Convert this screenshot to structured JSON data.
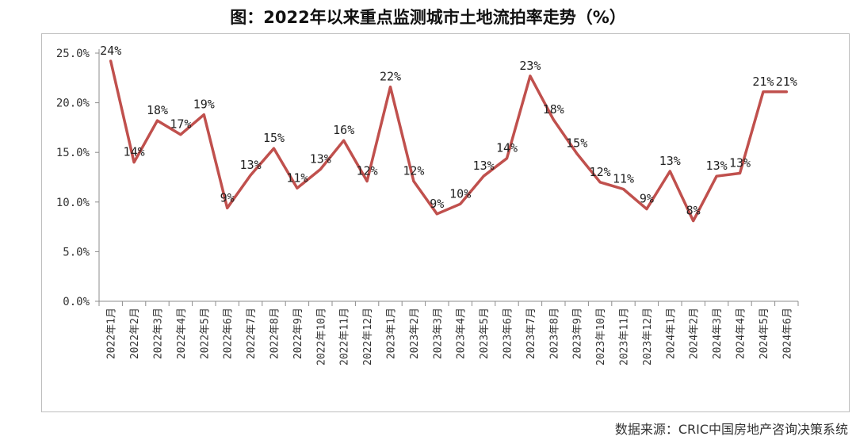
{
  "title": "图：2022年以来重点监测城市土地流拍率走势（%）",
  "source": "数据来源：CRIC中国房地产咨询决策系统",
  "chart_data": {
    "type": "line",
    "title": "图：2022年以来重点监测城市土地流拍率走势（%）",
    "xlabel": "",
    "ylabel": "",
    "ylim": [
      0,
      25
    ],
    "yticks": [
      "0.0%",
      "5.0%",
      "10.0%",
      "15.0%",
      "20.0%",
      "25.0%"
    ],
    "ytick_values": [
      0,
      5,
      10,
      15,
      20,
      25
    ],
    "grid": false,
    "color": "#c0504d",
    "categories": [
      "2022年1月",
      "2022年2月",
      "2022年3月",
      "2022年4月",
      "2022年5月",
      "2022年6月",
      "2022年7月",
      "2022年8月",
      "2022年9月",
      "2022年10月",
      "2022年11月",
      "2022年12月",
      "2023年1月",
      "2023年2月",
      "2023年3月",
      "2023年4月",
      "2023年5月",
      "2023年6月",
      "2023年7月",
      "2023年8月",
      "2023年9月",
      "2023年10月",
      "2023年11月",
      "2023年12月",
      "2024年1月",
      "2024年2月",
      "2024年3月",
      "2024年4月",
      "2024年5月",
      "2024年6月"
    ],
    "series": [
      {
        "values": [
          24.2,
          14.0,
          18.2,
          16.8,
          18.8,
          9.4,
          12.7,
          15.4,
          11.4,
          13.3,
          16.2,
          12.1,
          21.6,
          12.1,
          8.8,
          9.8,
          12.6,
          14.4,
          22.7,
          18.3,
          14.9,
          12.0,
          11.3,
          9.3,
          13.1,
          8.1,
          12.6,
          12.9,
          21.1,
          21.1
        ],
        "labels": [
          "24%",
          "14%",
          "18%",
          "17%",
          "19%",
          "9%",
          "13%",
          "15%",
          "11%",
          "13%",
          "16%",
          "12%",
          "22%",
          "12%",
          "9%",
          "10%",
          "13%",
          "14%",
          "23%",
          "18%",
          "15%",
          "12%",
          "11%",
          "9%",
          "13%",
          "8%",
          "13%",
          "13%",
          "21%",
          "21%"
        ]
      }
    ]
  }
}
